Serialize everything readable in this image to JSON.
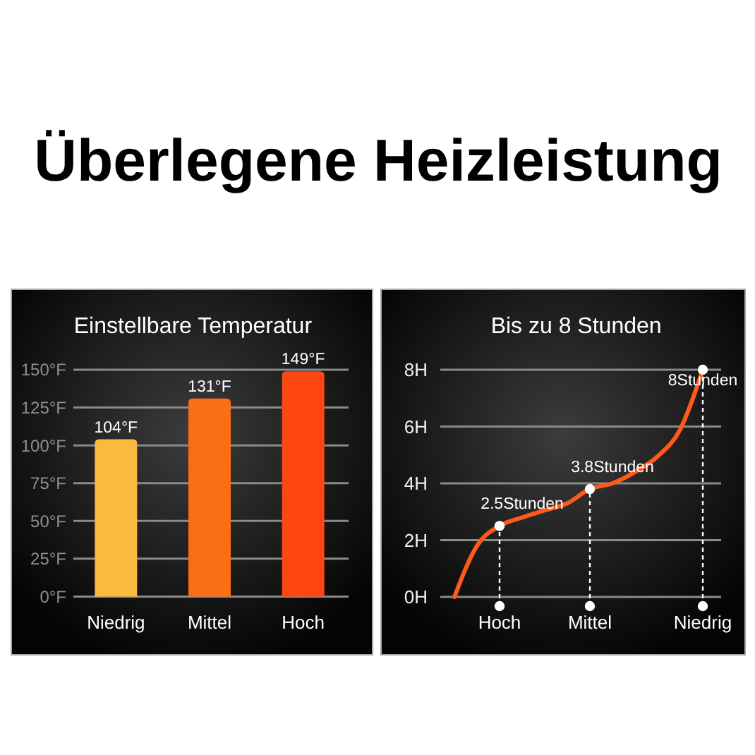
{
  "chart_data": [
    {
      "type": "bar",
      "title": "Überlegene Heizleistung",
      "subtitle": "Einstellbare Temperatur",
      "categories": [
        "Niedrig",
        "Mittel",
        "Hoch"
      ],
      "values": [
        104,
        131,
        149
      ],
      "colors": [
        "#f9bb3d",
        "#fa6e14",
        "#fd4612"
      ],
      "value_labels": [
        "104°F",
        "131°F",
        "149°F"
      ],
      "ylim": [
        0,
        150
      ],
      "yticks": [
        {
          "value": 0,
          "label": "0°F"
        },
        {
          "value": 25,
          "label": "25°F"
        },
        {
          "value": 50,
          "label": "50°F"
        },
        {
          "value": 75,
          "label": "75°F"
        },
        {
          "value": 100,
          "label": "100°F"
        },
        {
          "value": 125,
          "label": "125°F"
        },
        {
          "value": 150,
          "label": "150°F"
        }
      ],
      "grid": "y"
    },
    {
      "type": "line",
      "title": "Bis zu 8 Stunden",
      "categories": [
        null,
        null,
        "Hoch",
        null,
        null,
        null,
        "Mittel",
        null,
        null,
        null,
        null,
        "Niedrig"
      ],
      "ylim": [
        0,
        8
      ],
      "yticks": [
        {
          "value": 0,
          "label": "0H"
        },
        {
          "value": 2,
          "label": "2H"
        },
        {
          "value": 4,
          "label": "4H"
        },
        {
          "value": 6,
          "label": "6H"
        },
        {
          "value": 8,
          "label": "8H"
        }
      ],
      "grid": "y",
      "series": [
        {
          "type": "line",
          "color": "#ff5a1a",
          "values": [
            0,
            1.8,
            2.5,
            2.8,
            3.05,
            3.3,
            3.8,
            4.0,
            4.4,
            4.95,
            5.9,
            8
          ]
        },
        {
          "type": "lollipop",
          "color": "#ffffff",
          "marker": "circle",
          "line_style": "dashed",
          "values": [
            null,
            null,
            2.5,
            null,
            null,
            null,
            3.8,
            null,
            null,
            null,
            null,
            8
          ],
          "value_labels": [
            null,
            null,
            "2.5Stunden",
            null,
            null,
            null,
            "3.8Stunden",
            null,
            null,
            null,
            null,
            "8Stunden"
          ]
        }
      ]
    }
  ]
}
